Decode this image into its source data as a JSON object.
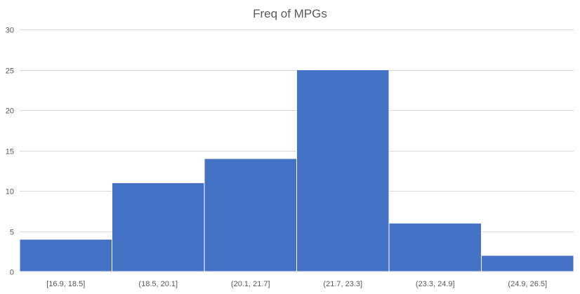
{
  "chart_data": {
    "type": "bar",
    "title": "Freq of MPGs",
    "xlabel": "",
    "ylabel": "",
    "categories": [
      "[16.9, 18.5]",
      "(18.5, 20.1]",
      "(20.1, 21.7]",
      "(21.7, 23.3]",
      "(23.3, 24.9]",
      "(24.9, 26.5]"
    ],
    "values": [
      4,
      11,
      14,
      25,
      6,
      2
    ],
    "ylim": [
      0,
      30
    ],
    "yticks": [
      0,
      5,
      10,
      15,
      20,
      25,
      30
    ],
    "grid": true,
    "legend": "none",
    "bar_color": "#4472C4",
    "bar_gap": "none"
  }
}
